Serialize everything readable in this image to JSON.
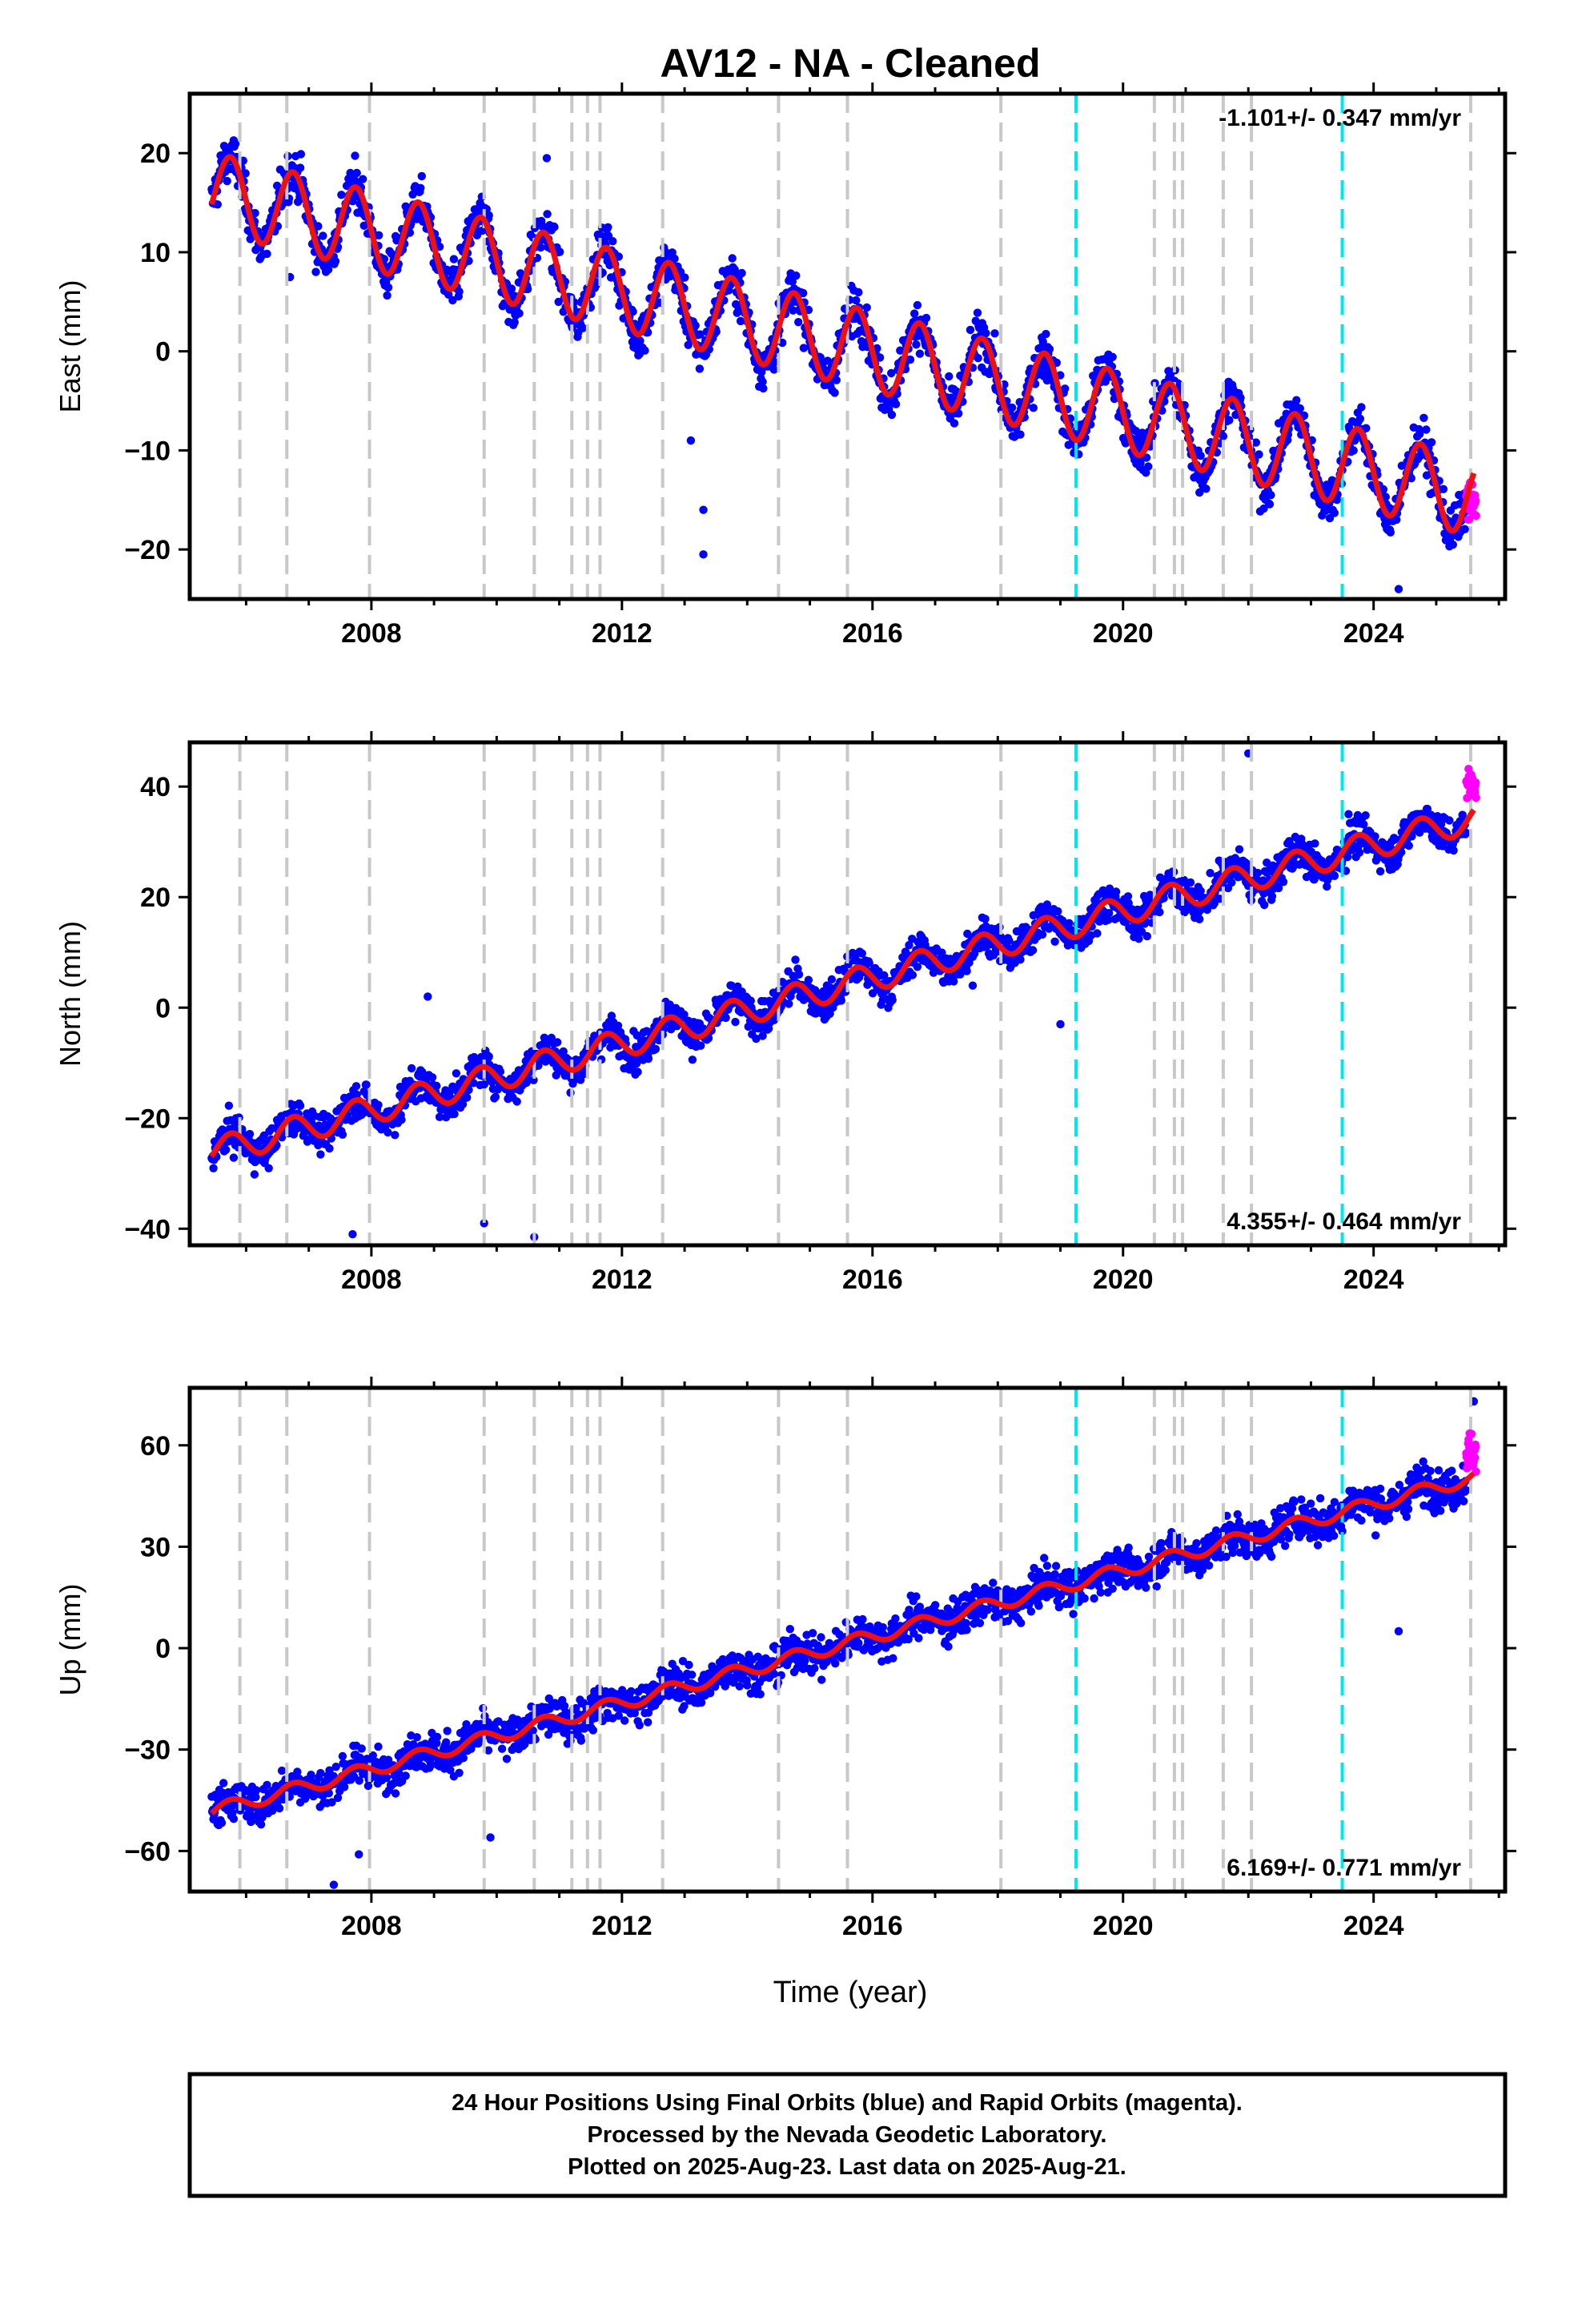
{
  "figure": {
    "title": "AV12  - NA - Cleaned",
    "x_axis_label": "Time (year)",
    "caption": [
      "24 Hour Positions Using Final Orbits (blue) and Rapid Orbits (magenta).",
      "Processed by the Nevada Geodetic Laboratory.",
      "Plotted on 2025-Aug-23. Last data on 2025-Aug-21."
    ]
  },
  "colors": {
    "final_orbits": "#0000ff",
    "rapid_orbits": "#ff00ff",
    "model": "#ee1111",
    "equipment_change": "#c8c8c8",
    "earthquake": "#00e5ee"
  },
  "chart_data": [
    {
      "type": "scatter",
      "name": "east",
      "ylabel": "East (mm)",
      "rate_text": "-1.101+/- 0.347 mm/yr",
      "rate_position": "top-right",
      "xlim": [
        2005.1,
        2026.1
      ],
      "ylim": [
        -25,
        26
      ],
      "x_ticks": [
        2008,
        2012,
        2016,
        2020,
        2024
      ],
      "y_ticks": [
        20,
        10,
        0,
        -10,
        -20
      ],
      "y_tick_labels": [
        "20",
        "10",
        "0",
        "−10",
        "−20"
      ],
      "series": [
        {
          "label": "final orbits",
          "x_range": [
            2005.45,
            2025.48
          ],
          "model_trend": {
            "at_2005_5": 16.0,
            "at_2025_5": -14.5
          },
          "annual_amplitude": 4.0,
          "scatter": 1.8
        },
        {
          "label": "rapid orbits",
          "x_range": [
            2025.48,
            2025.64
          ],
          "y_center": -15.5
        },
        {
          "label": "model",
          "x_range": [
            2005.45,
            2025.6
          ]
        }
      ],
      "outliers": [
        [
          2013.3,
          -16.0
        ],
        [
          2013.3,
          -20.5
        ],
        [
          2013.1,
          -9.0
        ],
        [
          2006.7,
          7.5
        ],
        [
          2010.8,
          19.5
        ],
        [
          2024.4,
          -24.0
        ]
      ]
    },
    {
      "type": "scatter",
      "name": "north",
      "ylabel": "North (mm)",
      "rate_text": "4.355+/- 0.464 mm/yr",
      "rate_position": "bottom-right",
      "xlim": [
        2005.1,
        2026.1
      ],
      "ylim": [
        -43,
        48
      ],
      "x_ticks": [
        2008,
        2012,
        2016,
        2020,
        2024
      ],
      "y_ticks": [
        40,
        20,
        0,
        -20,
        -40
      ],
      "y_tick_labels": [
        "40",
        "20",
        "0",
        "−20",
        "−40"
      ],
      "series": [
        {
          "label": "final orbits",
          "x_range": [
            2005.45,
            2025.48
          ],
          "model_trend": {
            "at_2005_5": -26.0,
            "at_2025_5": 34.0
          },
          "annual_amplitude": 2.5,
          "scatter": 2.5
        },
        {
          "label": "rapid orbits",
          "x_range": [
            2025.48,
            2025.64
          ],
          "y_center": 40.5
        },
        {
          "label": "model",
          "x_range": [
            2005.45,
            2025.6
          ]
        }
      ],
      "outliers": [
        [
          2008.9,
          2.0
        ],
        [
          2009.8,
          -39.0
        ],
        [
          2007.7,
          -41.0
        ],
        [
          2010.6,
          -41.5
        ],
        [
          2019.0,
          -3.0
        ],
        [
          2022.0,
          46.0
        ],
        [
          2023.6,
          35.0
        ],
        [
          2017.6,
          4.0
        ]
      ]
    },
    {
      "type": "scatter",
      "name": "up",
      "ylabel": "Up (mm)",
      "rate_text": "6.169+/- 0.771 mm/yr",
      "rate_position": "bottom-right",
      "xlim": [
        2005.1,
        2026.1
      ],
      "ylim": [
        -72,
        77
      ],
      "x_ticks": [
        2008,
        2012,
        2016,
        2020,
        2024
      ],
      "y_ticks": [
        60,
        30,
        0,
        -30,
        -60
      ],
      "y_tick_labels": [
        "60",
        "30",
        "0",
        "−30",
        "−60"
      ],
      "series": [
        {
          "label": "final orbits",
          "x_range": [
            2005.45,
            2025.48
          ],
          "model_trend": {
            "at_2005_5": -48.0,
            "at_2025_5": 50.0
          },
          "annual_amplitude": 2.0,
          "scatter": 4.5
        },
        {
          "label": "rapid orbits",
          "x_range": [
            2025.48,
            2025.64
          ],
          "y_center": 58.0
        },
        {
          "label": "model",
          "x_range": [
            2005.45,
            2025.6
          ]
        }
      ],
      "outliers": [
        [
          2024.4,
          5.0
        ],
        [
          2009.9,
          -56.0
        ],
        [
          2007.4,
          -70.0
        ],
        [
          2007.8,
          -61.0
        ],
        [
          2025.6,
          73.0
        ]
      ]
    }
  ],
  "event_lines": {
    "equipment_change": [
      2005.9,
      2006.65,
      2007.97,
      2009.8,
      2010.6,
      2011.2,
      2011.45,
      2011.65,
      2012.65,
      2014.5,
      2015.6,
      2018.05,
      2020.5,
      2020.82,
      2020.95,
      2021.6,
      2022.05,
      2025.55
    ],
    "earthquake": [
      2019.25,
      2023.5
    ]
  }
}
